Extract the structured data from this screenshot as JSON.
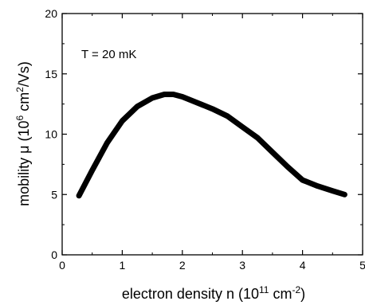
{
  "chart_data": {
    "type": "line",
    "xlabel": {
      "base": "electron density n (10",
      "sup1": "11",
      "mid": " cm",
      "sup2": "-2",
      "end": ")"
    },
    "ylabel": {
      "base": "mobility μ (10",
      "sup1": "6",
      "mid": " cm",
      "sup2": "2",
      "end": "/Vs)"
    },
    "annotation": "T = 20 mK",
    "xlim": [
      0,
      5
    ],
    "ylim": [
      0,
      20
    ],
    "xticks": [
      "0",
      "1",
      "2",
      "3",
      "4",
      "5"
    ],
    "yticks": [
      "0",
      "5",
      "10",
      "15",
      "20"
    ],
    "grid": false,
    "series": [
      {
        "color": "#000000",
        "x": [
          0.28,
          0.5,
          0.75,
          1.0,
          1.25,
          1.5,
          1.7,
          1.85,
          2.0,
          2.25,
          2.5,
          2.75,
          3.0,
          3.25,
          3.5,
          3.75,
          4.0,
          4.25,
          4.5,
          4.7
        ],
        "y": [
          4.9,
          7.0,
          9.3,
          11.1,
          12.3,
          13.0,
          13.3,
          13.3,
          13.1,
          12.6,
          12.1,
          11.5,
          10.6,
          9.7,
          8.5,
          7.3,
          6.2,
          5.7,
          5.3,
          5.0
        ]
      }
    ]
  }
}
